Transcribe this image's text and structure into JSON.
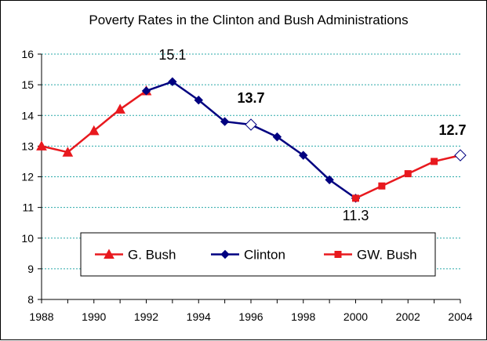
{
  "chart_data": {
    "type": "line",
    "title": "Poverty Rates in the Clinton and Bush Administrations",
    "xlabel": "",
    "ylabel": "",
    "xlim": [
      1988,
      2004
    ],
    "ylim": [
      8,
      16
    ],
    "x_ticks": [
      "1988",
      "1990",
      "1992",
      "1994",
      "1996",
      "1998",
      "2000",
      "2002",
      "2004"
    ],
    "y_ticks": [
      "8",
      "9",
      "10",
      "11",
      "12",
      "13",
      "14",
      "15",
      "16"
    ],
    "grid": "horizontal dotted",
    "legend_placement": "bottom-center",
    "series": [
      {
        "name": "G. Bush",
        "color": "#e8191e",
        "line_color": "#e8191e",
        "marker": "triangle",
        "x": [
          1988,
          1989,
          1990,
          1991,
          1992
        ],
        "y": [
          13.0,
          12.8,
          13.5,
          14.2,
          14.8
        ]
      },
      {
        "name": "Clinton",
        "color": "#000080",
        "line_color": "#000080",
        "marker": "diamond",
        "x": [
          1992,
          1993,
          1994,
          1995,
          1996,
          1997,
          1998,
          1999,
          2000
        ],
        "y": [
          14.8,
          15.1,
          14.5,
          13.8,
          13.7,
          13.3,
          12.7,
          11.9,
          11.3
        ]
      },
      {
        "name": "GW. Bush",
        "color": "#e8191e",
        "line_color": "#e8191e",
        "marker": "square",
        "x": [
          2000,
          2001,
          2002,
          2003,
          2004
        ],
        "y": [
          11.3,
          11.7,
          12.1,
          12.5,
          12.7
        ]
      }
    ],
    "annotations": [
      {
        "text": "15.1",
        "x": 1993,
        "y": 15.1,
        "bold": false
      },
      {
        "text": "13.7",
        "x": 1996,
        "y": 13.7,
        "bold": true
      },
      {
        "text": "11.3",
        "x": 2000,
        "y": 11.3,
        "bold": false
      },
      {
        "text": "12.7",
        "x": 2004,
        "y": 12.7,
        "bold": true
      }
    ],
    "open_markers": [
      {
        "x": 1996,
        "y": 13.7
      },
      {
        "x": 2004,
        "y": 12.7
      }
    ]
  }
}
